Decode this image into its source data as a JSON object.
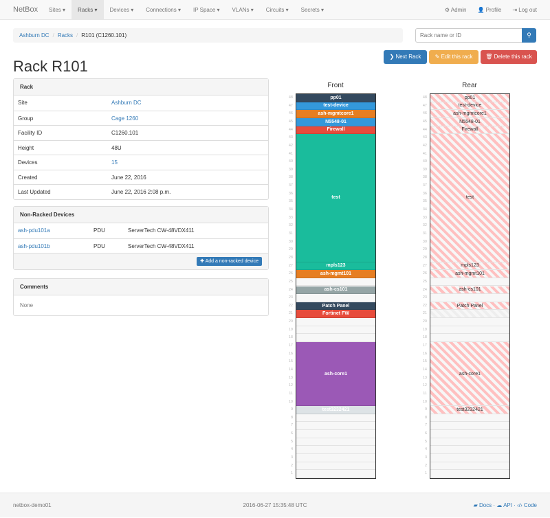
{
  "nav": {
    "brand": "NetBox",
    "menu": [
      "Sites",
      "Racks",
      "Devices",
      "Connections",
      "IP Space",
      "VLANs",
      "Circuits",
      "Secrets"
    ],
    "active": "Racks",
    "right": [
      "Admin",
      "Profile",
      "Log out"
    ]
  },
  "breadcrumb": [
    "Ashburn DC",
    "Racks",
    "R101 (C1260.101)"
  ],
  "search": {
    "placeholder": "Rack name or ID"
  },
  "actions": {
    "next": "Next Rack",
    "edit": "Edit this rack",
    "delete": "Delete this rack"
  },
  "colors": {
    "primary": "#337ab7",
    "warning": "#f0ad4e",
    "danger": "#d9534f"
  },
  "title": "Rack R101",
  "rack_panel": {
    "heading": "Rack",
    "rows": [
      {
        "label": "Site",
        "value": "Ashburn DC",
        "link": true
      },
      {
        "label": "Group",
        "value": "Cage 1260",
        "link": true
      },
      {
        "label": "Facility ID",
        "value": "C1260.101",
        "link": false
      },
      {
        "label": "Height",
        "value": "48U",
        "link": false
      },
      {
        "label": "Devices",
        "value": "15",
        "link": true
      },
      {
        "label": "Created",
        "value": "June 22, 2016",
        "link": false
      },
      {
        "label": "Last Updated",
        "value": "June 22, 2016 2:08 p.m.",
        "link": false
      }
    ]
  },
  "nonracked": {
    "heading": "Non-Racked Devices",
    "rows": [
      {
        "name": "ash-pdu101a",
        "role": "PDU",
        "type": "ServerTech CW-48VDX411"
      },
      {
        "name": "ash-pdu101b",
        "role": "PDU",
        "type": "ServerTech CW-48VDX411"
      }
    ],
    "add_label": "Add a non-racked device"
  },
  "comments": {
    "heading": "Comments",
    "body": "None"
  },
  "elevation": {
    "front_title": "Front",
    "rear_title": "Rear",
    "units": 48,
    "devices": [
      {
        "name": "pp01",
        "position": 48,
        "height": 1,
        "color": "#34495e",
        "full_depth": true
      },
      {
        "name": "test-device",
        "position": 47,
        "height": 1,
        "color": "#3498db",
        "full_depth": true
      },
      {
        "name": "ash-mgmtcore1",
        "position": 46,
        "height": 1,
        "color": "#e67e22",
        "full_depth": true
      },
      {
        "name": "N5548-01",
        "position": 45,
        "height": 1,
        "color": "#3498db",
        "full_depth": true
      },
      {
        "name": "Firewall",
        "position": 44,
        "height": 1,
        "color": "#e74c3c",
        "full_depth": true
      },
      {
        "name": "test",
        "position": 28,
        "height": 16,
        "color": "#1abc9c",
        "full_depth": true
      },
      {
        "name": "mpls123",
        "position": 27,
        "height": 1,
        "color": "#1abc9c",
        "full_depth": true
      },
      {
        "name": "ash-mgmt101",
        "position": 26,
        "height": 1,
        "color": "#e67e22",
        "full_depth": true
      },
      {
        "name": "ash-cs101",
        "position": 24,
        "height": 1,
        "color": "#95a5a6",
        "full_depth": true
      },
      {
        "name": "Patch Panel",
        "position": 22,
        "height": 1,
        "color": "#34495e",
        "full_depth": true
      },
      {
        "name": "Fortinet FW",
        "position": 21,
        "height": 1,
        "color": "#e74c3c",
        "full_depth": false
      },
      {
        "name": "ash-core1",
        "position": 10,
        "height": 8,
        "color": "#9b59b6",
        "full_depth": true
      },
      {
        "name": "test3232421",
        "position": 9,
        "height": 1,
        "color": "#dde3e6",
        "full_depth": true
      }
    ]
  },
  "footer": {
    "host": "netbox-demo01",
    "timestamp": "2016-06-27 15:35:48 UTC",
    "links": [
      "Docs",
      "API",
      "Code"
    ]
  }
}
